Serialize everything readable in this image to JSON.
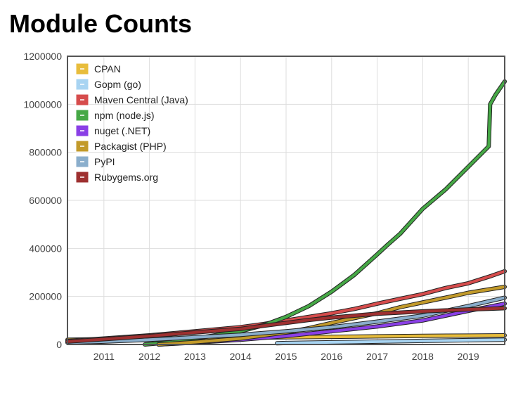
{
  "page": {
    "title": "Module Counts"
  },
  "chart_data": {
    "type": "line",
    "title": "Module Counts",
    "xlabel": "",
    "ylabel": "",
    "xlim": [
      2010.2,
      2019.8
    ],
    "ylim": [
      0,
      1200000
    ],
    "grid": true,
    "legend_position": "top-left",
    "x_ticks": [
      2011,
      2012,
      2013,
      2014,
      2015,
      2016,
      2017,
      2018,
      2019
    ],
    "x_tick_labels": [
      "2011",
      "2012",
      "2013",
      "2014",
      "2015",
      "2016",
      "2017",
      "2018",
      "2019"
    ],
    "y_ticks": [
      0,
      200000,
      400000,
      600000,
      800000,
      1000000,
      1200000
    ],
    "y_tick_labels": [
      "0",
      "200000",
      "400000",
      "600000",
      "800000",
      "1000000",
      "1200000"
    ],
    "series": [
      {
        "name": "CPAN",
        "color": "#e8bd3c",
        "x": [
          2010.2,
          2011,
          2012,
          2013,
          2014,
          2015,
          2016,
          2017,
          2018,
          2019,
          2019.8
        ],
        "values": [
          20000,
          22000,
          24000,
          26000,
          28000,
          30000,
          32000,
          34000,
          36000,
          37000,
          38000
        ]
      },
      {
        "name": "Gopm (go)",
        "color": "#a8d4f2",
        "x": [
          2014.8,
          2015,
          2016,
          2017,
          2018,
          2019,
          2019.8
        ],
        "values": [
          5000,
          6000,
          9000,
          12000,
          15000,
          18000,
          20000
        ]
      },
      {
        "name": "Maven Central (Java)",
        "color": "#d64c4c",
        "x": [
          2010.2,
          2011,
          2012,
          2013,
          2014,
          2014.5,
          2015,
          2015.5,
          2016,
          2016.5,
          2017,
          2017.5,
          2018,
          2018.5,
          2019,
          2019.5,
          2019.8
        ],
        "values": [
          15000,
          25000,
          38000,
          55000,
          72000,
          85000,
          100000,
          115000,
          130000,
          148000,
          170000,
          190000,
          210000,
          235000,
          255000,
          285000,
          305000
        ]
      },
      {
        "name": "npm (node.js)",
        "color": "#46a846",
        "x": [
          2011.9,
          2012.5,
          2013,
          2013.5,
          2014,
          2014.5,
          2015,
          2015.5,
          2016,
          2016.5,
          2017,
          2017.2,
          2017.5,
          2018,
          2018.5,
          2019,
          2019.45,
          2019.48,
          2019.6,
          2019.8
        ],
        "values": [
          0,
          10000,
          25000,
          40000,
          55000,
          80000,
          115000,
          160000,
          220000,
          290000,
          375000,
          410000,
          460000,
          565000,
          645000,
          740000,
          825000,
          1000000,
          1040000,
          1095000
        ]
      },
      {
        "name": "nuget (.NET)",
        "color": "#8a3fe6",
        "x": [
          2012.2,
          2013,
          2014,
          2015,
          2016,
          2017,
          2018,
          2019,
          2019.8
        ],
        "values": [
          0,
          8000,
          20000,
          35000,
          55000,
          75000,
          100000,
          140000,
          170000
        ]
      },
      {
        "name": "Packagist (PHP)",
        "color": "#c29a2a",
        "x": [
          2012.2,
          2013,
          2014,
          2015,
          2015.5,
          2016,
          2016.5,
          2017,
          2017.5,
          2018,
          2018.5,
          2019,
          2019.8
        ],
        "values": [
          0,
          10000,
          25000,
          50000,
          68000,
          90000,
          110000,
          130000,
          155000,
          175000,
          195000,
          215000,
          240000
        ]
      },
      {
        "name": "PyPI",
        "color": "#8aaecc",
        "x": [
          2010.2,
          2011,
          2012,
          2013,
          2014,
          2015,
          2016,
          2017,
          2018,
          2019,
          2019.8
        ],
        "values": [
          8000,
          12000,
          20000,
          30000,
          40000,
          55000,
          72000,
          95000,
          120000,
          160000,
          195000
        ]
      },
      {
        "name": "Rubygems.org",
        "color": "#9e3030",
        "x": [
          2010.2,
          2011,
          2012,
          2013,
          2014,
          2014.5,
          2015,
          2015.5,
          2016,
          2016.5,
          2017,
          2017.5,
          2018,
          2018.5,
          2019,
          2019.5,
          2019.8
        ],
        "values": [
          12000,
          22000,
          35000,
          50000,
          65000,
          78000,
          90000,
          102000,
          112000,
          120000,
          128000,
          133000,
          138000,
          142000,
          146000,
          149000,
          151000
        ]
      }
    ]
  }
}
